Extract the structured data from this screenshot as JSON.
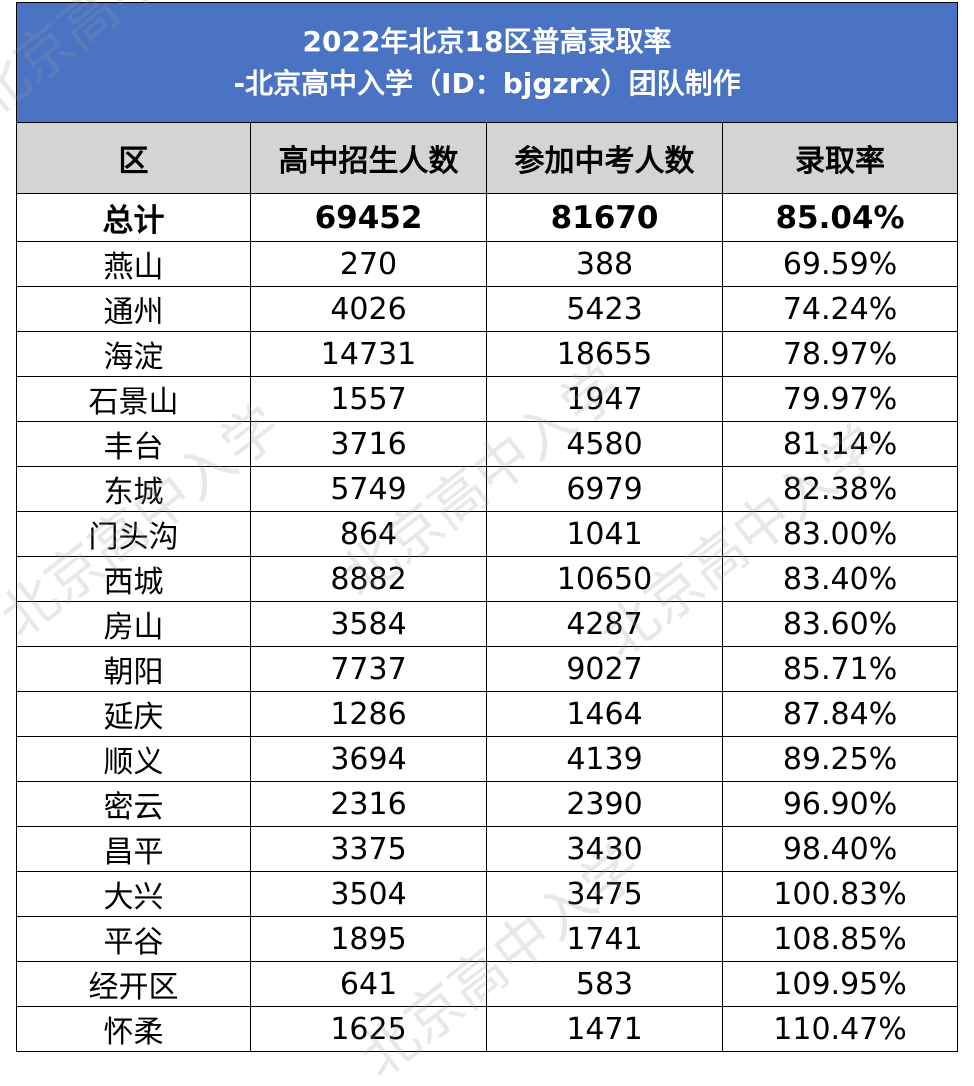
{
  "header": {
    "title_line1": "2022年北京18区普高录取率",
    "title_line2": "-北京高中入学（ID：bjgzrx）团队制作"
  },
  "columns": [
    "区",
    "高中招生人数",
    "参加中考人数",
    "录取率"
  ],
  "total": {
    "district": "总计",
    "enrolled": "69452",
    "examinees": "81670",
    "rate": "85.04%"
  },
  "rows": [
    {
      "district": "燕山",
      "enrolled": "270",
      "examinees": "388",
      "rate": "69.59%"
    },
    {
      "district": "通州",
      "enrolled": "4026",
      "examinees": "5423",
      "rate": "74.24%"
    },
    {
      "district": "海淀",
      "enrolled": "14731",
      "examinees": "18655",
      "rate": "78.97%"
    },
    {
      "district": "石景山",
      "enrolled": "1557",
      "examinees": "1947",
      "rate": "79.97%"
    },
    {
      "district": "丰台",
      "enrolled": "3716",
      "examinees": "4580",
      "rate": "81.14%"
    },
    {
      "district": "东城",
      "enrolled": "5749",
      "examinees": "6979",
      "rate": "82.38%"
    },
    {
      "district": "门头沟",
      "enrolled": "864",
      "examinees": "1041",
      "rate": "83.00%"
    },
    {
      "district": "西城",
      "enrolled": "8882",
      "examinees": "10650",
      "rate": "83.40%"
    },
    {
      "district": "房山",
      "enrolled": "3584",
      "examinees": "4287",
      "rate": "83.60%"
    },
    {
      "district": "朝阳",
      "enrolled": "7737",
      "examinees": "9027",
      "rate": "85.71%"
    },
    {
      "district": "延庆",
      "enrolled": "1286",
      "examinees": "1464",
      "rate": "87.84%"
    },
    {
      "district": "顺义",
      "enrolled": "3694",
      "examinees": "4139",
      "rate": "89.25%"
    },
    {
      "district": "密云",
      "enrolled": "2316",
      "examinees": "2390",
      "rate": "96.90%"
    },
    {
      "district": "昌平",
      "enrolled": "3375",
      "examinees": "3430",
      "rate": "98.40%"
    },
    {
      "district": "大兴",
      "enrolled": "3504",
      "examinees": "3475",
      "rate": "100.83%"
    },
    {
      "district": "平谷",
      "enrolled": "1895",
      "examinees": "1741",
      "rate": "108.85%"
    },
    {
      "district": "经开区",
      "enrolled": "641",
      "examinees": "583",
      "rate": "109.95%"
    },
    {
      "district": "怀柔",
      "enrolled": "1625",
      "examinees": "1471",
      "rate": "110.47%"
    }
  ],
  "watermark": {
    "text": "北京高中入学"
  },
  "colors": {
    "title_bg": "#4a73c4",
    "header_bg": "#d4d4d4",
    "title_text": "#ffffff"
  },
  "chart_data": {
    "type": "table",
    "title": "2022年北京18区普高录取率",
    "subtitle": "-北京高中入学（ID：bjgzrx）团队制作",
    "columns": [
      "区",
      "高中招生人数",
      "参加中考人数",
      "录取率"
    ],
    "total": [
      "总计",
      69452,
      81670,
      "85.04%"
    ],
    "rows": [
      [
        "燕山",
        270,
        388,
        "69.59%"
      ],
      [
        "通州",
        4026,
        5423,
        "74.24%"
      ],
      [
        "海淀",
        14731,
        18655,
        "78.97%"
      ],
      [
        "石景山",
        1557,
        1947,
        "79.97%"
      ],
      [
        "丰台",
        3716,
        4580,
        "81.14%"
      ],
      [
        "东城",
        5749,
        6979,
        "82.38%"
      ],
      [
        "门头沟",
        864,
        1041,
        "83.00%"
      ],
      [
        "西城",
        8882,
        10650,
        "83.40%"
      ],
      [
        "房山",
        3584,
        4287,
        "83.60%"
      ],
      [
        "朝阳",
        7737,
        9027,
        "85.71%"
      ],
      [
        "延庆",
        1286,
        1464,
        "87.84%"
      ],
      [
        "顺义",
        3694,
        4139,
        "89.25%"
      ],
      [
        "密云",
        2316,
        2390,
        "96.90%"
      ],
      [
        "昌平",
        3375,
        3430,
        "98.40%"
      ],
      [
        "大兴",
        3504,
        3475,
        "100.83%"
      ],
      [
        "平谷",
        1895,
        1741,
        "108.85%"
      ],
      [
        "经开区",
        641,
        583,
        "109.95%"
      ],
      [
        "怀柔",
        1625,
        1471,
        "110.47%"
      ]
    ]
  }
}
